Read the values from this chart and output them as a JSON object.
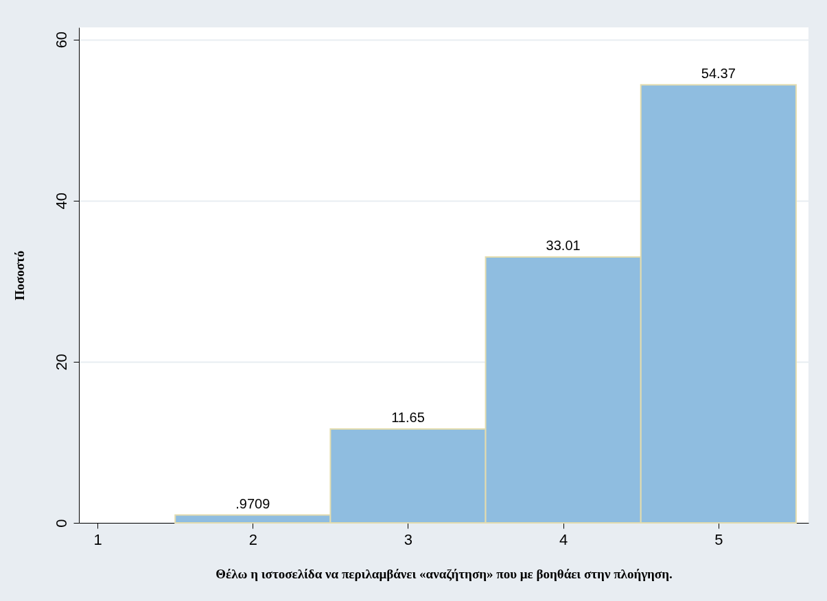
{
  "chart_data": {
    "type": "histogram",
    "xlabel": "Θέλω η ιστοσελίδα να περιλαμβάνει «αναζήτηση» που με βοηθάει στην πλοήγηση.",
    "ylabel": "Ποσοστό",
    "bins": [
      1.5,
      2.5,
      3.5,
      4.5,
      5.5
    ],
    "values": [
      0.9709,
      11.65,
      33.01,
      54.37
    ],
    "value_labels": [
      ".9709",
      "11.65",
      "33.01",
      "54.37"
    ],
    "color": "#8fbde0",
    "xlim": [
      0.88,
      5.58
    ],
    "xticks": [
      1,
      2,
      3,
      4,
      5
    ],
    "ylim": [
      0,
      61.5
    ],
    "yticks": [
      0,
      20,
      40,
      60
    ],
    "grid": "y"
  }
}
